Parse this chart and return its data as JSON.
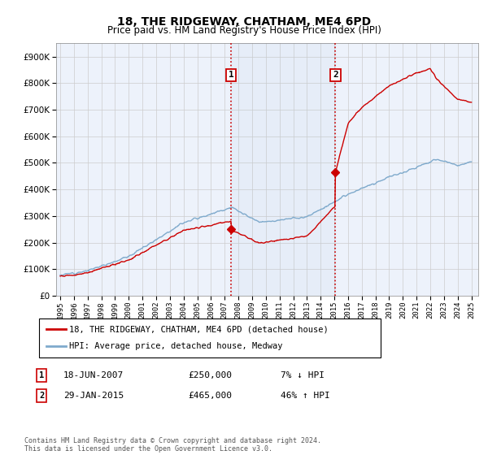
{
  "title": "18, THE RIDGEWAY, CHATHAM, ME4 6PD",
  "subtitle": "Price paid vs. HM Land Registry's House Price Index (HPI)",
  "ylim": [
    0,
    950000
  ],
  "sale1_date": 2007.46,
  "sale1_price": 250000,
  "sale1_label": "1",
  "sale1_text": "18-JUN-2007",
  "sale1_price_str": "£250,000",
  "sale1_pct": "7% ↓ HPI",
  "sale2_date": 2015.08,
  "sale2_price": 465000,
  "sale2_label": "2",
  "sale2_text": "29-JAN-2015",
  "sale2_price_str": "£465,000",
  "sale2_pct": "46% ↑ HPI",
  "hpi_color": "#7faacc",
  "price_color": "#cc0000",
  "marker_box_color": "#cc0000",
  "legend_label1": "18, THE RIDGEWAY, CHATHAM, ME4 6PD (detached house)",
  "legend_label2": "HPI: Average price, detached house, Medway",
  "footnote": "Contains HM Land Registry data © Crown copyright and database right 2024.\nThis data is licensed under the Open Government Licence v3.0.",
  "background_color": "#ffffff",
  "plot_bg_color": "#edf2fb"
}
